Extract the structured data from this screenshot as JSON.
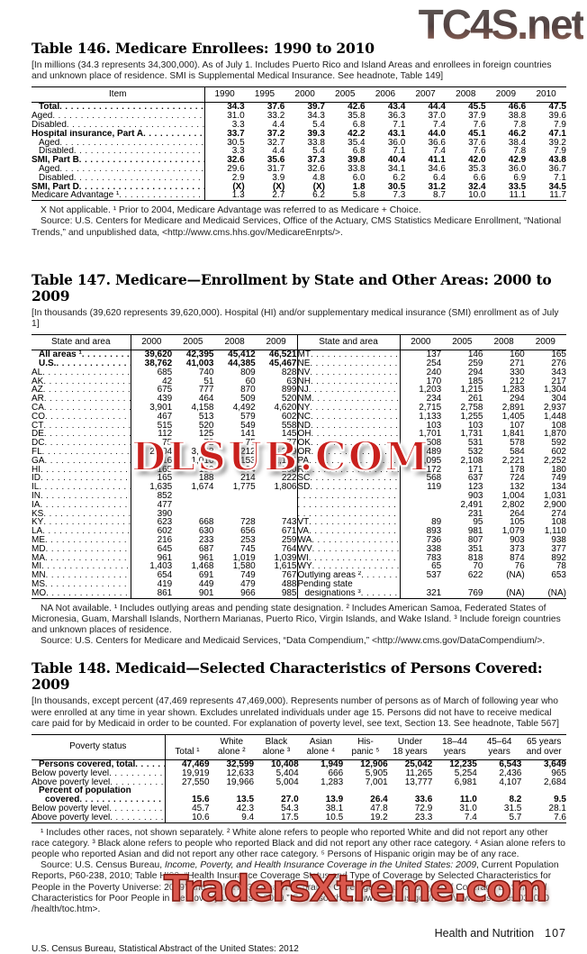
{
  "watermarks": {
    "top": "TC4S.net",
    "middle": "DLSUB.COM",
    "bottom": "TradersXtreme.com"
  },
  "table146": {
    "title": "Table 146. Medicare Enrollees: 1990 to 2010",
    "headnote": "[In millions (34.3 represents 34,300,000). As of July 1. Includes Puerto Rico and Island Areas and enrollees in foreign countries and unknown place of residence. SMI is Supplemental Medical Insurance. See headnote, Table 149]",
    "item_header": "Item",
    "years": [
      "1990",
      "1995",
      "2000",
      "2005",
      "2006",
      "2007",
      "2008",
      "2009",
      "2010"
    ],
    "rows": [
      {
        "label": "Total",
        "bold": true,
        "ind": 1,
        "values": [
          "34.3",
          "37.6",
          "39.7",
          "42.6",
          "43.4",
          "44.4",
          "45.5",
          "46.6",
          "47.5"
        ]
      },
      {
        "label": "Aged",
        "values": [
          "31.0",
          "33.2",
          "34.3",
          "35.8",
          "36.3",
          "37.0",
          "37.9",
          "38.8",
          "39.6"
        ]
      },
      {
        "label": "Disabled",
        "values": [
          "3.3",
          "4.4",
          "5.4",
          "6.8",
          "7.1",
          "7.4",
          "7.6",
          "7.8",
          "7.9"
        ]
      },
      {
        "label": "Hospital insurance, Part A",
        "bold": true,
        "values": [
          "33.7",
          "37.2",
          "39.3",
          "42.2",
          "43.1",
          "44.0",
          "45.1",
          "46.2",
          "47.1"
        ]
      },
      {
        "label": "Aged",
        "ind": 1,
        "values": [
          "30.5",
          "32.7",
          "33.8",
          "35.4",
          "36.0",
          "36.6",
          "37.6",
          "38.4",
          "39.2"
        ]
      },
      {
        "label": "Disabled",
        "ind": 1,
        "values": [
          "3.3",
          "4.4",
          "5.4",
          "6.8",
          "7.1",
          "7.4",
          "7.6",
          "7.8",
          "7.9"
        ]
      },
      {
        "label": "SMI, Part B",
        "bold": true,
        "values": [
          "32.6",
          "35.6",
          "37.3",
          "39.8",
          "40.4",
          "41.1",
          "42.0",
          "42.9",
          "43.8"
        ]
      },
      {
        "label": "Aged",
        "ind": 1,
        "values": [
          "29.6",
          "31.7",
          "32.6",
          "33.8",
          "34.1",
          "34.6",
          "35.3",
          "36.0",
          "36.7"
        ]
      },
      {
        "label": "Disabled",
        "ind": 1,
        "values": [
          "2.9",
          "3.9",
          "4.8",
          "6.0",
          "6.2",
          "6.4",
          "6.6",
          "6.9",
          "7.1"
        ]
      },
      {
        "label": "SMI, Part D",
        "bold": true,
        "values": [
          "(X)",
          "(X)",
          "(X)",
          "1.8",
          "30.5",
          "31.2",
          "32.4",
          "33.5",
          "34.5"
        ]
      },
      {
        "label": "Medicare Advantage ¹",
        "values": [
          "1.3",
          "2.7",
          "6.2",
          "5.8",
          "7.3",
          "8.7",
          "10.0",
          "11.1",
          "11.7"
        ]
      }
    ],
    "footnote": "X Not applicable. ¹ Prior to 2004, Medicare Advantage was referred to as Medicare + Choice.",
    "source": "Source: U.S. Centers for Medicare and Medicaid Services, Office of the Actuary, CMS Statistics Medicare Enrollment, “National Trends,” and unpublished data, <http://www.cms.hhs.gov/MedicareEnrpts/>."
  },
  "table147": {
    "title": "Table 147. Medicare—Enrollment by State and Other Areas: 2000 to 2009",
    "headnote": "[In thousands (39,620 represents 39,620,000). Hospital (HI) and/or supplementary medical insurance (SMI) enrollment as of July 1]",
    "col_header": "State and area",
    "years": [
      "2000",
      "2005",
      "2008",
      "2009"
    ],
    "rows": [
      {
        "l": {
          "label": "All areas ¹",
          "bold": true,
          "ind": 1,
          "values": [
            "39,620",
            "42,395",
            "45,412",
            "46,521"
          ]
        },
        "r": {
          "label": "MT",
          "values": [
            "137",
            "146",
            "160",
            "165"
          ]
        }
      },
      {
        "l": {
          "label": "U.S.",
          "bold": true,
          "ind": 1,
          "values": [
            "38,762",
            "41,003",
            "44,385",
            "45,467"
          ]
        },
        "r": {
          "label": "NE",
          "values": [
            "254",
            "259",
            "271",
            "276"
          ]
        }
      },
      {
        "l": {
          "label": "AL",
          "values": [
            "685",
            "740",
            "809",
            "828"
          ]
        },
        "r": {
          "label": "NV",
          "values": [
            "240",
            "294",
            "330",
            "343"
          ]
        }
      },
      {
        "l": {
          "label": "AK",
          "values": [
            "42",
            "51",
            "60",
            "63"
          ]
        },
        "r": {
          "label": "NH",
          "values": [
            "170",
            "185",
            "212",
            "217"
          ]
        }
      },
      {
        "l": {
          "label": "AZ",
          "values": [
            "675",
            "777",
            "870",
            "899"
          ]
        },
        "r": {
          "label": "NJ",
          "values": [
            "1,203",
            "1,215",
            "1,283",
            "1,304"
          ]
        }
      },
      {
        "l": {
          "label": "AR",
          "values": [
            "439",
            "464",
            "509",
            "520"
          ]
        },
        "r": {
          "label": "NM",
          "values": [
            "234",
            "261",
            "294",
            "304"
          ]
        }
      },
      {
        "l": {
          "label": "CA",
          "values": [
            "3,901",
            "4,158",
            "4,492",
            "4,620"
          ]
        },
        "r": {
          "label": "NY",
          "values": [
            "2,715",
            "2,758",
            "2,891",
            "2,937"
          ]
        }
      },
      {
        "l": {
          "label": "CO",
          "values": [
            "467",
            "513",
            "579",
            "602"
          ]
        },
        "r": {
          "label": "NC",
          "values": [
            "1,133",
            "1,255",
            "1,405",
            "1,448"
          ]
        }
      },
      {
        "l": {
          "label": "CT",
          "values": [
            "515",
            "520",
            "549",
            "558"
          ]
        },
        "r": {
          "label": "ND",
          "values": [
            "103",
            "103",
            "107",
            "108"
          ]
        }
      },
      {
        "l": {
          "label": "DE",
          "values": [
            "112",
            "125",
            "141",
            "145"
          ]
        },
        "r": {
          "label": "OH",
          "values": [
            "1,701",
            "1,731",
            "1,841",
            "1,870"
          ]
        }
      },
      {
        "l": {
          "label": "DC",
          "values": [
            "75",
            "72",
            "75",
            "77"
          ]
        },
        "r": {
          "label": "OK",
          "values": [
            "508",
            "531",
            "578",
            "592"
          ]
        }
      },
      {
        "l": {
          "label": "FL",
          "values": [
            "2,804",
            "3,008",
            "3,212",
            "3,289"
          ]
        },
        "r": {
          "label": "OR",
          "values": [
            "489",
            "532",
            "584",
            "602"
          ]
        }
      },
      {
        "l": {
          "label": "GA",
          "values": [
            "916",
            "1,016",
            "1,153",
            "1,194"
          ]
        },
        "r": {
          "label": "PA",
          "values": [
            "2,095",
            "2,108",
            "2,221",
            "2,252"
          ]
        }
      },
      {
        "l": {
          "label": "HI",
          "values": [
            "165",
            "180",
            "194",
            "200"
          ]
        },
        "r": {
          "label": "RI",
          "values": [
            "172",
            "171",
            "178",
            "180"
          ]
        }
      },
      {
        "l": {
          "label": "ID",
          "values": [
            "165",
            "188",
            "214",
            "222"
          ]
        },
        "r": {
          "label": "SC",
          "values": [
            "568",
            "637",
            "724",
            "749"
          ]
        }
      },
      {
        "l": {
          "label": "IL",
          "values": [
            "1,635",
            "1,674",
            "1,775",
            "1,806"
          ]
        },
        "r": {
          "label": "SD",
          "values": [
            "119",
            "123",
            "132",
            "134"
          ]
        }
      },
      {
        "l": {
          "label": "IN",
          "values": [
            "852",
            "",
            "",
            ""
          ]
        },
        "r": {
          "label": "",
          "values": [
            "",
            "903",
            "1,004",
            "1,031"
          ]
        }
      },
      {
        "l": {
          "label": "IA",
          "values": [
            "477",
            "",
            "",
            ""
          ]
        },
        "r": {
          "label": "",
          "values": [
            "",
            "2,491",
            "2,802",
            "2,900"
          ]
        }
      },
      {
        "l": {
          "label": "KS",
          "values": [
            "390",
            "",
            "",
            ""
          ]
        },
        "r": {
          "label": "",
          "values": [
            "",
            "231",
            "264",
            "274"
          ]
        }
      },
      {
        "l": {
          "label": "KY",
          "values": [
            "623",
            "668",
            "728",
            "743"
          ]
        },
        "r": {
          "label": "VT",
          "values": [
            "89",
            "95",
            "105",
            "108"
          ]
        }
      },
      {
        "l": {
          "label": "LA",
          "values": [
            "602",
            "630",
            "656",
            "671"
          ]
        },
        "r": {
          "label": "VA",
          "values": [
            "893",
            "981",
            "1,079",
            "1,110"
          ]
        }
      },
      {
        "l": {
          "label": "ME",
          "values": [
            "216",
            "233",
            "253",
            "259"
          ]
        },
        "r": {
          "label": "WA",
          "values": [
            "736",
            "807",
            "903",
            "938"
          ]
        }
      },
      {
        "l": {
          "label": "MD",
          "values": [
            "645",
            "687",
            "745",
            "764"
          ]
        },
        "r": {
          "label": "WV",
          "values": [
            "338",
            "351",
            "373",
            "377"
          ]
        }
      },
      {
        "l": {
          "label": "MA",
          "values": [
            "961",
            "961",
            "1,019",
            "1,039"
          ]
        },
        "r": {
          "label": "WI",
          "values": [
            "783",
            "818",
            "874",
            "892"
          ]
        }
      },
      {
        "l": {
          "label": "MI",
          "values": [
            "1,403",
            "1,468",
            "1,580",
            "1,615"
          ]
        },
        "r": {
          "label": "WY",
          "values": [
            "65",
            "70",
            "76",
            "78"
          ]
        }
      },
      {
        "l": {
          "label": "MN",
          "values": [
            "654",
            "691",
            "749",
            "767"
          ]
        },
        "r": {
          "label": "Outlying areas ²",
          "values": [
            "537",
            "622",
            "(NA)",
            "653"
          ]
        }
      },
      {
        "l": {
          "label": "MS",
          "values": [
            "419",
            "449",
            "479",
            "488"
          ]
        },
        "r": {
          "label": "Pending state",
          "nl": true,
          "values": [
            "",
            "",
            "",
            ""
          ]
        }
      },
      {
        "l": {
          "label": "MO",
          "values": [
            "861",
            "901",
            "966",
            "985"
          ]
        },
        "r": {
          "label": "designations ³",
          "ind": 1,
          "values": [
            "321",
            "769",
            "(NA)",
            "(NA)"
          ]
        }
      }
    ],
    "footnote": "NA Not available. ¹ Includes outlying areas and pending state designation. ² Includes American Samoa, Federated States of Micronesia, Guam, Marshall Islands, Northern Marianas, Puerto Rico, Virgin Islands, and Wake Island. ³ Include foreign countries and unknown places of residence.",
    "source": "Source: U.S. Centers for Medicare and Medicaid Services, “Data Compendium,” <http://www.cms.gov/DataCompendium/>."
  },
  "table148": {
    "title": "Table 148. Medicaid—Selected Characteristics of Persons Covered: 2009",
    "headnote": "[In thousands, except percent (47,469 represents 47,469,000). Represents number of persons as of March of following year who were enrolled at any time in year shown. Excludes unrelated individuals under age 15. Persons did not have to receive medical care paid for by Medicaid in order to be counted. For explanation of poverty level, see text, Section 13. See headnote, Table 567]",
    "col_header": "Poverty status",
    "headers": [
      "Total ¹",
      "White\nalone ²",
      "Black\nalone ³",
      "Asian\nalone ⁴",
      "His-\npanic ⁵",
      "Under\n18 years",
      "18–44\nyears",
      "45–64\nyears",
      "65 years\nand over"
    ],
    "rows": [
      {
        "label": "Persons covered, total",
        "bold": true,
        "ind": 1,
        "values": [
          "47,469",
          "32,599",
          "10,408",
          "1,949",
          "12,906",
          "25,042",
          "12,235",
          "6,543",
          "3,649"
        ]
      },
      {
        "label": "Below poverty level",
        "values": [
          "19,919",
          "12,633",
          "5,404",
          "666",
          "5,905",
          "11,265",
          "5,254",
          "2,436",
          "965"
        ]
      },
      {
        "label": "Above poverty level",
        "values": [
          "27,550",
          "19,966",
          "5,004",
          "1,283",
          "7,001",
          "13,777",
          "6,981",
          "4,107",
          "2,684"
        ]
      },
      {
        "label": "Percent of population",
        "bold": true,
        "ind": 1,
        "nl": true,
        "values": [
          "",
          "",
          "",
          "",
          "",
          "",
          "",
          "",
          ""
        ]
      },
      {
        "label": "covered",
        "bold": true,
        "ind": 2,
        "values": [
          "15.6",
          "13.5",
          "27.0",
          "13.9",
          "26.4",
          "33.6",
          "11.0",
          "8.2",
          "9.5"
        ]
      },
      {
        "label": "Below poverty level",
        "values": [
          "45.7",
          "42.3",
          "54.3",
          "38.1",
          "47.8",
          "72.9",
          "31.0",
          "31.5",
          "28.1"
        ]
      },
      {
        "label": "Above poverty level",
        "values": [
          "10.6",
          "9.4",
          "17.5",
          "10.5",
          "19.2",
          "23.3",
          "7.4",
          "5.7",
          "7.6"
        ]
      }
    ],
    "footnote": "¹ Includes other races, not shown separately. ² White alone refers to people who reported White and did not report any other race category. ³ Black alone refers to people who reported Black and did not report any other race category. ⁴ Asian alone refers to people who reported Asian and did not report any other race category. ⁵ Persons of Hispanic origin may be of any race.",
    "source_pre": "Source: U.S. Census Bureau, ",
    "source_italic": "Income, Poverty, and Health Insurance Coverage in the United States: 2009",
    "source_post": ", Current Population Reports, P60-238, 2010; Table HI02, “Health Insurance Coverage Status and Type of Coverage by Selected Characteristics for People in the Poverty Universe: 2009” and Table HI03, “Health Insurance Coverage Status and Type of Coverage by Selected Characteristics for Poor People in the Poverty Universe: 2009.” See also <http://www.census.gov/hhes/www/cpstables/032010 /health/toc.htm>."
  },
  "footer": {
    "section": "Health and Nutrition",
    "page_number": "107",
    "imprint": "U.S. Census Bureau, Statistical Abstract of the United States: 2012"
  }
}
